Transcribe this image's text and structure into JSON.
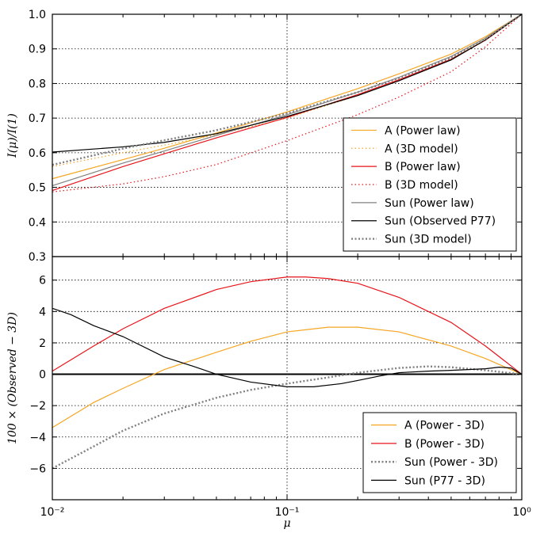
{
  "chart_data": [
    {
      "type": "line",
      "panel": "top",
      "ylabel": "I(μ)/I(1)",
      "xlabel": "",
      "xscale": "log",
      "xlim": [
        0.01,
        1.0
      ],
      "ylim": [
        0.3,
        1.0
      ],
      "yticks": [
        "0.3",
        "0.4",
        "0.5",
        "0.6",
        "0.7",
        "0.8",
        "0.9",
        "1.0"
      ],
      "grid": true,
      "legend_position": "lower-right",
      "series": [
        {
          "name": "A (Power law)",
          "color": "#f5a623",
          "style": "solid",
          "x": [
            0.01,
            0.02,
            0.03,
            0.05,
            0.1,
            0.2,
            0.3,
            0.5,
            0.7,
            1.0
          ],
          "y": [
            0.525,
            0.58,
            0.613,
            0.657,
            0.718,
            0.785,
            0.828,
            0.885,
            0.935,
            1.0
          ]
        },
        {
          "name": "A (3D model)",
          "color": "#f5a623",
          "style": "dotted",
          "x": [
            0.01,
            0.02,
            0.03,
            0.05,
            0.1,
            0.2,
            0.3,
            0.5,
            0.7,
            1.0
          ],
          "y": [
            0.56,
            0.6,
            0.622,
            0.652,
            0.7,
            0.765,
            0.81,
            0.871,
            0.927,
            1.0
          ]
        },
        {
          "name": "B (Power law)",
          "color": "#e8141a",
          "style": "solid",
          "x": [
            0.01,
            0.02,
            0.03,
            0.05,
            0.1,
            0.2,
            0.3,
            0.5,
            0.7,
            1.0
          ],
          "y": [
            0.491,
            0.56,
            0.597,
            0.643,
            0.702,
            0.768,
            0.811,
            0.87,
            0.925,
            1.0
          ]
        },
        {
          "name": "B (3D model)",
          "color": "#e8141a",
          "style": "dotted",
          "x": [
            0.01,
            0.02,
            0.03,
            0.05,
            0.1,
            0.2,
            0.3,
            0.5,
            0.7,
            1.0
          ],
          "y": [
            0.487,
            0.51,
            0.531,
            0.566,
            0.635,
            0.71,
            0.761,
            0.834,
            0.906,
            1.0
          ]
        },
        {
          "name": "Sun (Power law)",
          "color": "#808080",
          "style": "solid",
          "x": [
            0.01,
            0.02,
            0.03,
            0.05,
            0.1,
            0.2,
            0.3,
            0.5,
            0.7,
            1.0
          ],
          "y": [
            0.505,
            0.57,
            0.605,
            0.65,
            0.71,
            0.775,
            0.818,
            0.878,
            0.931,
            1.0
          ]
        },
        {
          "name": "Sun (Observed P77)",
          "color": "#000000",
          "style": "solid",
          "x": [
            0.01,
            0.02,
            0.03,
            0.05,
            0.1,
            0.2,
            0.3,
            0.5,
            0.7,
            1.0
          ],
          "y": [
            0.602,
            0.617,
            0.63,
            0.655,
            0.705,
            0.765,
            0.808,
            0.868,
            0.926,
            1.0
          ]
        },
        {
          "name": "Sun (3D model)",
          "color": "#808080",
          "style": "dotted-thick",
          "x": [
            0.01,
            0.02,
            0.03,
            0.05,
            0.1,
            0.2,
            0.3,
            0.5,
            0.7,
            1.0
          ],
          "y": [
            0.565,
            0.612,
            0.636,
            0.665,
            0.714,
            0.775,
            0.816,
            0.874,
            0.929,
            1.0
          ]
        }
      ]
    },
    {
      "type": "line",
      "panel": "bottom",
      "ylabel": "100 × (Observed − 3D)",
      "xlabel": "μ",
      "xscale": "log",
      "xlim": [
        0.01,
        1.0
      ],
      "ylim": [
        -8,
        7.5
      ],
      "yticks": [
        "−6",
        "−4",
        "−2",
        "0",
        "2",
        "4",
        "6"
      ],
      "xticks": [
        "10⁻²",
        "10⁻¹",
        "10⁰"
      ],
      "grid": true,
      "legend_position": "lower-right",
      "series": [
        {
          "name": "A (Power - 3D)",
          "color": "#f5a623",
          "style": "solid",
          "x": [
            0.01,
            0.015,
            0.02,
            0.03,
            0.05,
            0.07,
            0.1,
            0.15,
            0.2,
            0.3,
            0.5,
            0.7,
            1.0
          ],
          "y": [
            -3.4,
            -1.8,
            -0.9,
            0.3,
            1.4,
            2.1,
            2.7,
            3.0,
            3.0,
            2.7,
            1.8,
            1.0,
            0.0
          ]
        },
        {
          "name": "B (Power - 3D)",
          "color": "#e8141a",
          "style": "solid",
          "x": [
            0.01,
            0.015,
            0.02,
            0.03,
            0.05,
            0.07,
            0.1,
            0.12,
            0.15,
            0.2,
            0.3,
            0.5,
            0.7,
            1.0
          ],
          "y": [
            0.2,
            1.8,
            2.9,
            4.2,
            5.4,
            5.9,
            6.2,
            6.2,
            6.1,
            5.8,
            4.9,
            3.3,
            1.8,
            0.0
          ]
        },
        {
          "name": "Sun (Power - 3D)",
          "color": "#808080",
          "style": "dotted-thick",
          "x": [
            0.01,
            0.015,
            0.02,
            0.03,
            0.05,
            0.07,
            0.1,
            0.15,
            0.2,
            0.3,
            0.4,
            0.5,
            0.7,
            1.0
          ],
          "y": [
            -6.0,
            -4.6,
            -3.6,
            -2.5,
            -1.5,
            -1.0,
            -0.6,
            -0.2,
            0.1,
            0.4,
            0.5,
            0.45,
            0.25,
            0.0
          ]
        },
        {
          "name": "Sun (P77 - 3D)",
          "color": "#000000",
          "style": "solid",
          "x": [
            0.01,
            0.012,
            0.015,
            0.02,
            0.03,
            0.04,
            0.05,
            0.07,
            0.1,
            0.13,
            0.17,
            0.2,
            0.25,
            0.3,
            0.4,
            0.5,
            0.7,
            0.8,
            0.9,
            1.0
          ],
          "y": [
            4.2,
            3.8,
            3.1,
            2.4,
            1.1,
            0.5,
            0.0,
            -0.5,
            -0.8,
            -0.8,
            -0.6,
            -0.4,
            -0.1,
            0.1,
            0.2,
            0.25,
            0.35,
            0.45,
            0.4,
            0.0
          ]
        }
      ]
    }
  ]
}
